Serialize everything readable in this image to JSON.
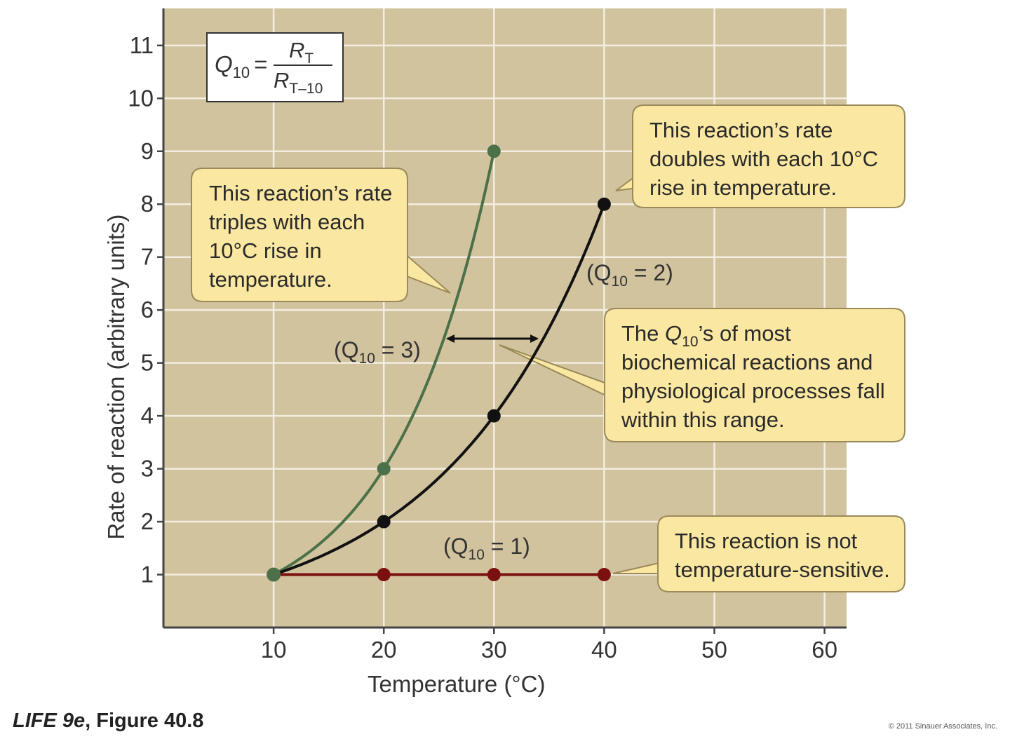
{
  "chart_data": {
    "type": "line",
    "xlabel": "Temperature (°C)",
    "ylabel": "Rate of reaction (arbitrary units)",
    "xlim": [
      0,
      62
    ],
    "ylim": [
      0,
      11.7
    ],
    "x_ticks": [
      10,
      20,
      30,
      40,
      50,
      60
    ],
    "y_ticks": [
      1,
      2,
      3,
      4,
      5,
      6,
      7,
      8,
      9,
      10,
      11
    ],
    "grid": true,
    "series": [
      {
        "name": "(Q10 = 3)",
        "color": "#4c7048",
        "x": [
          10,
          20,
          30
        ],
        "y": [
          1,
          3,
          9
        ]
      },
      {
        "name": "(Q10 = 2)",
        "color": "#111111",
        "x": [
          10,
          20,
          30,
          40
        ],
        "y": [
          1,
          2,
          4,
          8
        ]
      },
      {
        "name": "(Q10 = 1)",
        "color": "#7a1010",
        "x": [
          10,
          20,
          30,
          40
        ],
        "y": [
          1,
          1,
          1,
          1
        ]
      }
    ],
    "series_labels": {
      "q3": {
        "prefix": "(Q",
        "sub": "10",
        "suffix": " = 3)"
      },
      "q2": {
        "prefix": "(Q",
        "sub": "10",
        "suffix": " = 2)"
      },
      "q1": {
        "prefix": "(Q",
        "sub": "10",
        "suffix": " = 1)"
      }
    },
    "formula": {
      "lhs": "Q",
      "lhs_sub": "10",
      "equals": "=",
      "num": "R",
      "num_sub": "T",
      "den": "R",
      "den_sub": "T–10"
    },
    "annotations": {
      "triples": [
        "This reaction’s rate",
        "triples with each",
        "10°C rise in",
        "temperature."
      ],
      "doubles": [
        "This reaction’s rate",
        "doubles with each 10°C",
        "rise in temperature."
      ],
      "range": {
        "line1_prefix": "The ",
        "line1_q": "Q",
        "line1_sub": "10",
        "line1_suffix": "’s of most",
        "lines": [
          "biochemical reactions and",
          "physiological processes fall",
          "within this range."
        ]
      },
      "insensitive": [
        "This reaction is not",
        "temperature-sensitive."
      ]
    },
    "colors": {
      "plot_background": "#d2c39f",
      "grid": "#f3eee0",
      "callout_fill": "#f9e7a2",
      "callout_stroke": "#9a8a5a"
    }
  },
  "caption": {
    "book": "LIFE 9e",
    "figure": ", Figure 40.8"
  },
  "credit": "© 2011 Sinauer Associates, Inc."
}
